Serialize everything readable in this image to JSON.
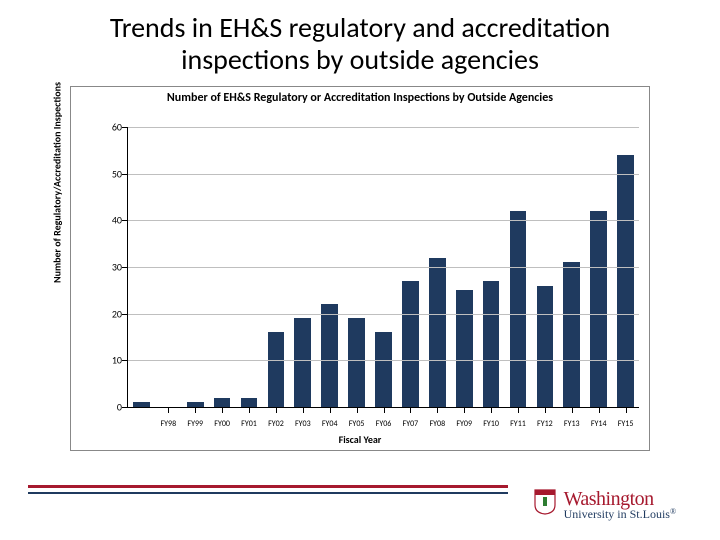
{
  "slide_title": "Trends in EH&S regulatory and accreditation inspections by outside agencies",
  "chart": {
    "type": "bar",
    "title": "Number of EH&S Regulatory or Accreditation Inspections by Outside Agencies",
    "x_label": "Fiscal Year",
    "y_label": "Number of Regulatory/Accreditation Inspections",
    "categories": [
      "FY98",
      "FY99",
      "FY00",
      "FY01",
      "FY02",
      "FY03",
      "FY04",
      "FY05",
      "FY06",
      "FY07",
      "FY08",
      "FY09",
      "FY10",
      "FY11",
      "FY12",
      "FY13",
      "FY14",
      "FY15"
    ],
    "values": [
      1,
      0,
      1,
      2,
      2,
      16,
      19,
      22,
      19,
      16,
      27,
      32,
      25,
      27,
      42,
      26,
      31,
      42,
      54
    ],
    "has_offset_first_bar": true,
    "bar_color": "#1f3a5f",
    "grid_color": "#bfbfbf",
    "axis_color": "#000000",
    "background_color": "#ffffff",
    "ylim": [
      0,
      60
    ],
    "ytick_step": 10,
    "title_fontsize": 12,
    "label_fontsize": 10,
    "tick_fontsize_x": 8,
    "tick_fontsize_y": 10,
    "bar_width_ratio": 0.62
  },
  "footer": {
    "rule_color_top": "#a6192e",
    "rule_color_bottom": "#1f3a5f"
  },
  "logo": {
    "line1": "Washington",
    "line2": "University in St.Louis",
    "shield_bg": "#a6192e",
    "shield_accent": "#2e7d32"
  }
}
